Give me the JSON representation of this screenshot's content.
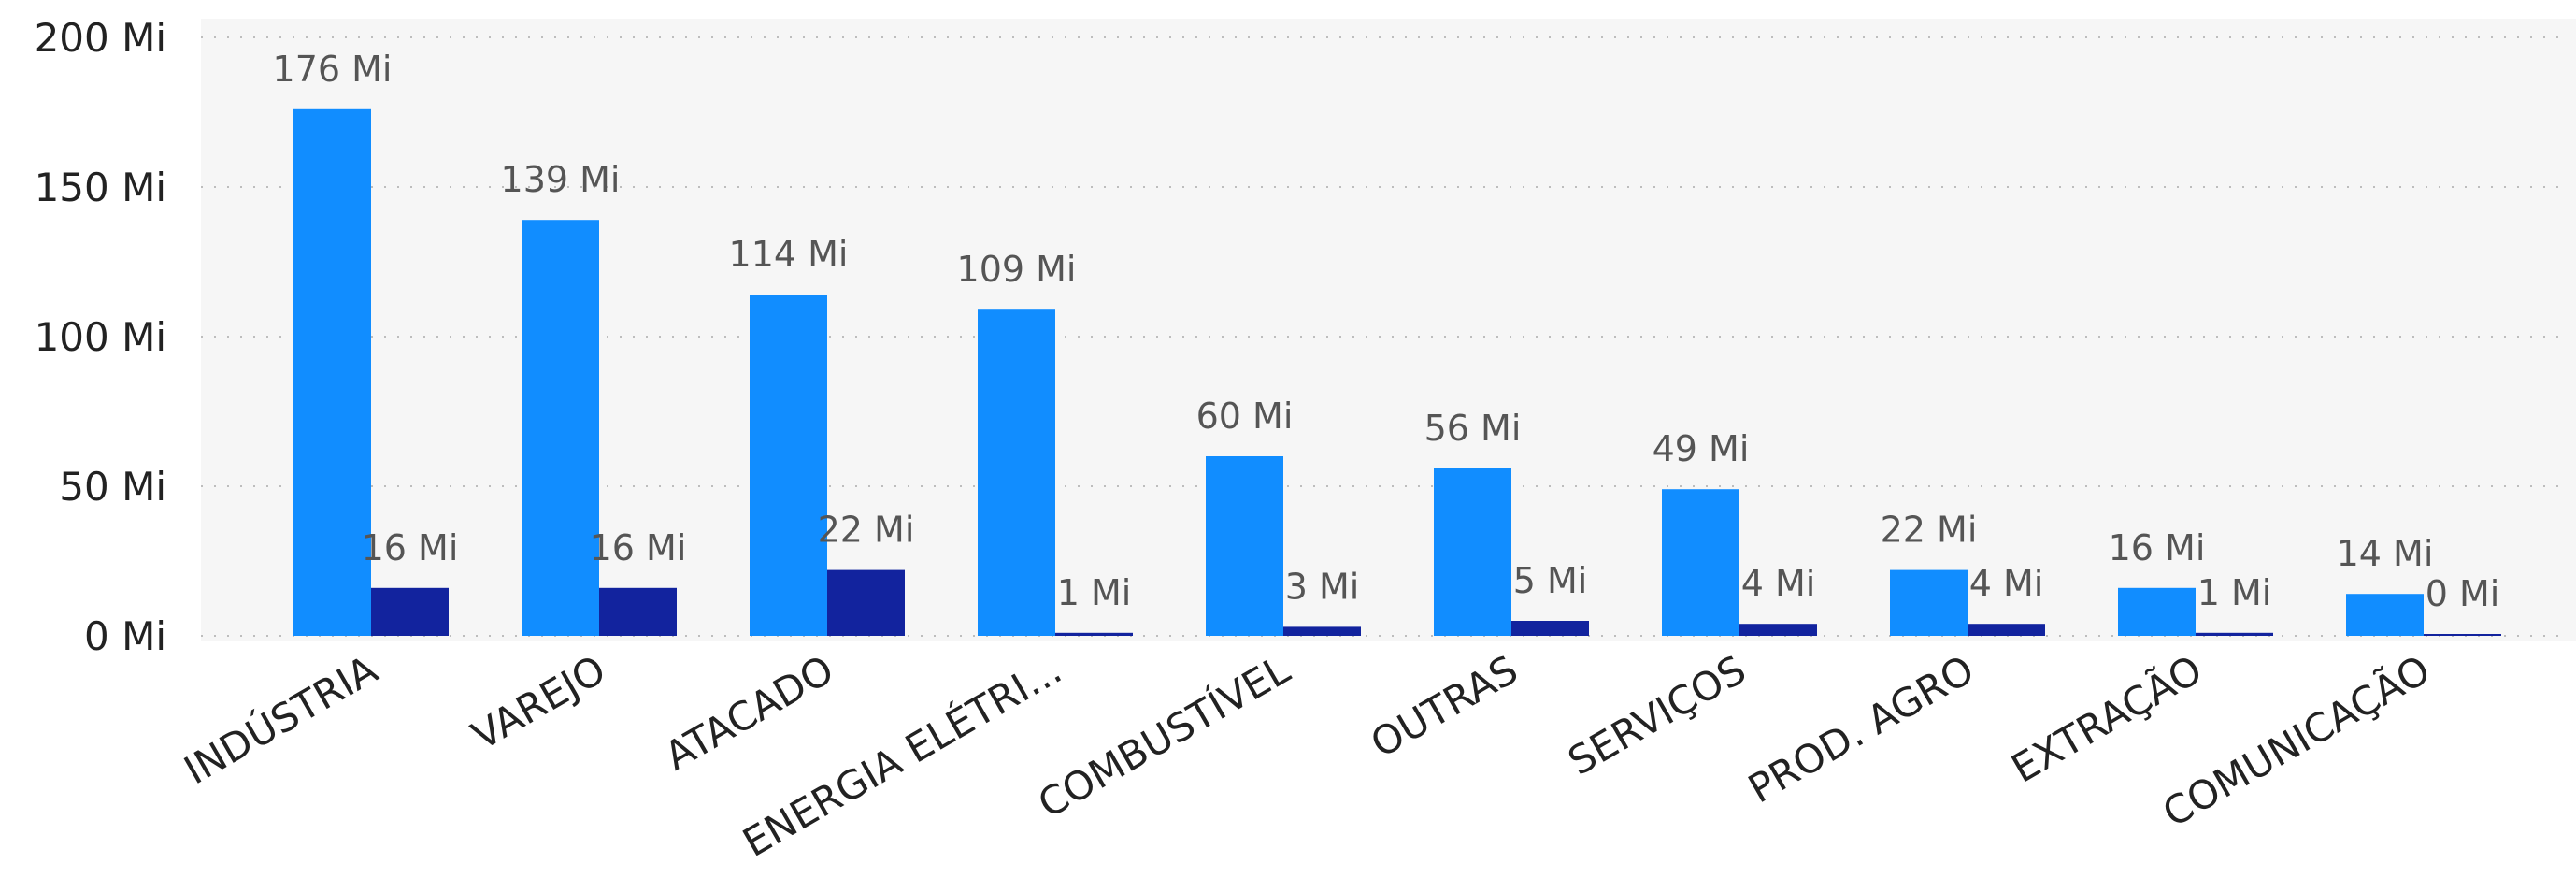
{
  "chart_data": {
    "type": "bar",
    "title": "",
    "xlabel": "",
    "ylabel": "",
    "ylim": [
      0,
      200
    ],
    "yticks": [
      0,
      50,
      100,
      150,
      200
    ],
    "ytick_labels": [
      "0 Mi",
      "50 Mi",
      "100 Mi",
      "150 Mi",
      "200 Mi"
    ],
    "categories": [
      "INDÚSTRIA",
      "VAREJO",
      "ATACADO",
      "ENERGIA ELÉTRI...",
      "COMBUSTÍVEL",
      "OUTRAS",
      "SERVIÇOS",
      "PROD. AGRO",
      "EXTRAÇÃO",
      "COMUNICAÇÃO"
    ],
    "grid": true,
    "legend": "none",
    "series": [
      {
        "color": "#118DFF",
        "values": [
          176,
          139,
          114,
          109,
          60,
          56,
          49,
          22,
          16,
          14
        ],
        "labels": [
          "176 Mi",
          "139 Mi",
          "114 Mi",
          "109 Mi",
          "60 Mi",
          "56 Mi",
          "49 Mi",
          "22 Mi",
          "16 Mi",
          "14 Mi"
        ]
      },
      {
        "color": "#12239E",
        "values": [
          16,
          16,
          22,
          1,
          3,
          5,
          4,
          4,
          1,
          0.4
        ],
        "labels": [
          "16 Mi",
          "16 Mi",
          "22 Mi",
          "1 Mi",
          "3 Mi",
          "5 Mi",
          "4 Mi",
          "4 Mi",
          "1 Mi",
          "0 Mi"
        ]
      }
    ]
  }
}
